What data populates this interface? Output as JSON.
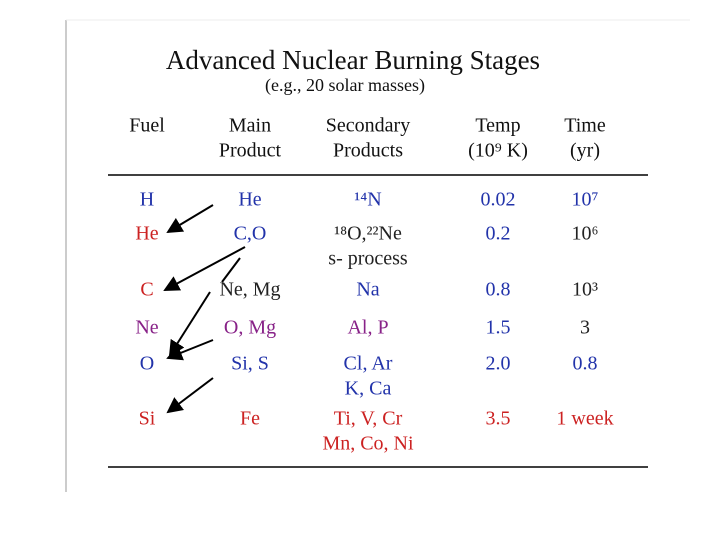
{
  "header": {
    "title": "Advanced Nuclear Burning Stages",
    "subtitle": "(e.g., 20 solar masses)"
  },
  "table": {
    "columns": [
      [
        "Fuel"
      ],
      [
        "Main",
        "Product"
      ],
      [
        "Secondary",
        "Products"
      ],
      [
        "Temp",
        "(10⁹ K)"
      ],
      [
        "Time",
        "(yr)"
      ]
    ],
    "rows": [
      [
        [
          "H"
        ],
        [
          "He"
        ],
        [
          "¹⁴N"
        ],
        [
          "0.02"
        ],
        [
          "10⁷"
        ]
      ],
      [
        [
          "He"
        ],
        [
          "C,O"
        ],
        [
          "¹⁸O,²²Ne",
          "s- process"
        ],
        [
          "0.2"
        ],
        [
          "10⁶"
        ]
      ],
      [
        [
          "C"
        ],
        [
          "Ne, Mg"
        ],
        [
          "Na"
        ],
        [
          "0.8"
        ],
        [
          "10³"
        ]
      ],
      [
        [
          "Ne"
        ],
        [
          "O, Mg"
        ],
        [
          "Al, P"
        ],
        [
          "1.5"
        ],
        [
          "3"
        ]
      ],
      [
        [
          "O"
        ],
        [
          "Si, S"
        ],
        [
          "Cl, Ar",
          "K, Ca"
        ],
        [
          "2.0"
        ],
        [
          "0.8"
        ]
      ],
      [
        [
          "Si"
        ],
        [
          "Fe"
        ],
        [
          "Ti, V, Cr",
          "Mn, Co, Ni"
        ],
        [
          "3.5"
        ],
        [
          "1 week"
        ]
      ]
    ]
  }
}
